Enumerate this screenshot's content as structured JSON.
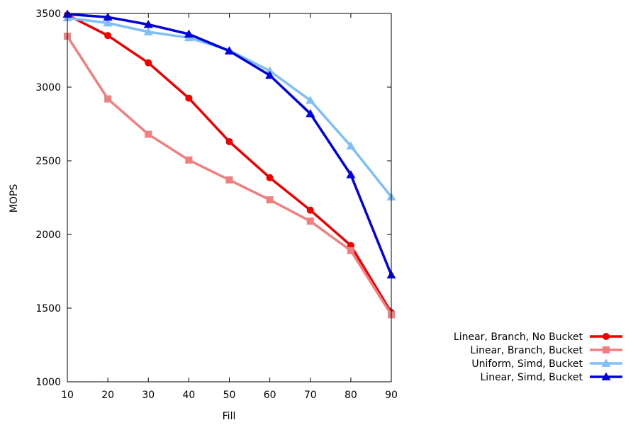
{
  "chart_data": {
    "type": "line",
    "xlabel": "Fill",
    "ylabel": "MOPS",
    "x": [
      10,
      20,
      30,
      40,
      50,
      60,
      70,
      80,
      90
    ],
    "xlim": [
      10,
      90
    ],
    "ylim": [
      1000,
      3500
    ],
    "xticks": [
      "10",
      "20",
      "30",
      "40",
      "50",
      "60",
      "70",
      "80",
      "90"
    ],
    "yticks": [
      "1000",
      "1500",
      "2000",
      "2500",
      "3000",
      "3500"
    ],
    "grid": false,
    "legend_position": "bottom-right, outside plot",
    "series": [
      {
        "name": "Linear, Branch, No Bucket",
        "color": "#ee0000",
        "marker": "circle",
        "values": [
          3490,
          3350,
          3165,
          2925,
          2630,
          2385,
          2165,
          1925,
          1470
        ]
      },
      {
        "name": "Linear, Branch, Bucket",
        "color": "#f08080",
        "marker": "square",
        "values": [
          3345,
          2920,
          2680,
          2505,
          2370,
          2235,
          2090,
          1890,
          1455
        ]
      },
      {
        "name": "Uniform, Simd, Bucket",
        "color": "#7fbff5",
        "marker": "triangle",
        "values": [
          3470,
          3435,
          3375,
          3335,
          3250,
          3110,
          2910,
          2600,
          2255
        ]
      },
      {
        "name": "Linear, Simd, Bucket",
        "color": "#0000dd",
        "marker": "triangle",
        "values": [
          3495,
          3475,
          3425,
          3360,
          3245,
          3080,
          2820,
          2405,
          1725
        ]
      }
    ]
  }
}
